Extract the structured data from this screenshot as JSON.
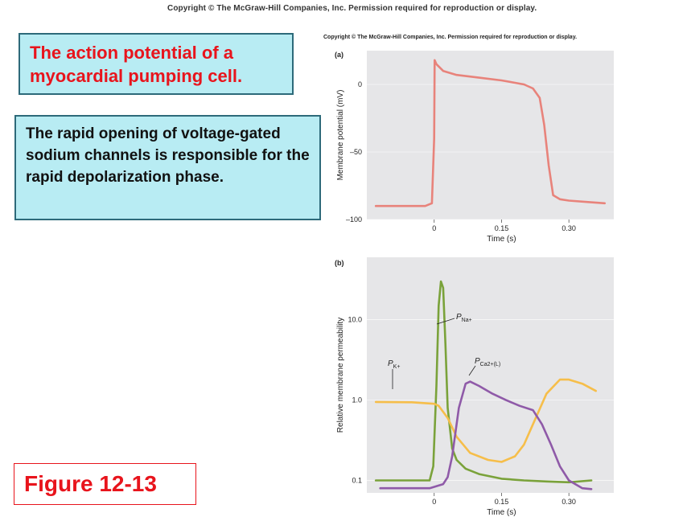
{
  "header": {
    "copyright_top": "Copyright © The McGraw-Hill Companies, Inc. Permission required for reproduction or display."
  },
  "title_box": {
    "text": "The action potential of a myocardial pumping cell."
  },
  "description_box": {
    "text": "The rapid opening of voltage-gated sodium channels is responsible for the rapid depolarization phase."
  },
  "figure_label": {
    "text": "Figure 12-13"
  },
  "figure_copyright": "Copyright © The McGraw-Hill Companies, Inc. Permission required for reproduction or display.",
  "colors": {
    "panel_bg": "#e6e6e8",
    "vm": "#e8837b",
    "pna": "#7aa23a",
    "pk": "#f6be4a",
    "pca": "#8f5aa8",
    "box_bg": "#b8ecf3",
    "red": "#e8141c"
  },
  "chart_data": [
    {
      "panel": "(a)",
      "type": "line",
      "xlabel": "Time (s)",
      "ylabel": "Membrane potential (mV)",
      "x_ticks": [
        {
          "v": 0,
          "label": "0"
        },
        {
          "v": 0.15,
          "label": "0.15"
        },
        {
          "v": 0.3,
          "label": "0.30"
        }
      ],
      "y_ticks": [
        {
          "v": 0,
          "label": "0"
        },
        {
          "v": -50,
          "label": "–50"
        },
        {
          "v": -100,
          "label": "–100"
        }
      ],
      "xlim": [
        -0.15,
        0.4
      ],
      "ylim": [
        -100,
        25
      ],
      "series": [
        {
          "color": "#e8837b",
          "x": [
            -0.13,
            -0.02,
            -0.005,
            0.0,
            0.001,
            0.005,
            0.02,
            0.05,
            0.1,
            0.15,
            0.2,
            0.22,
            0.235,
            0.245,
            0.255,
            0.265,
            0.28,
            0.3,
            0.34,
            0.38
          ],
          "y": [
            -90,
            -90,
            -88,
            -40,
            18,
            15,
            10,
            7,
            5,
            3,
            0,
            -3,
            -10,
            -30,
            -60,
            -82,
            -85,
            -86,
            -87,
            -88
          ]
        }
      ]
    },
    {
      "panel": "(b)",
      "type": "line",
      "log_y": true,
      "xlabel": "Time (s)",
      "ylabel": "Relative membrane permeability",
      "x_ticks": [
        {
          "v": 0,
          "label": "0"
        },
        {
          "v": 0.15,
          "label": "0.15"
        },
        {
          "v": 0.3,
          "label": "0.30"
        }
      ],
      "y_ticks": [
        {
          "v": 10,
          "label": "10.0"
        },
        {
          "v": 1,
          "label": "1.0"
        },
        {
          "v": 0.1,
          "label": "0.1"
        }
      ],
      "xlim": [
        -0.15,
        0.4
      ],
      "ylim": [
        0.07,
        60
      ],
      "series": [
        {
          "name": "P_Na+",
          "color": "#7aa23a",
          "x": [
            -0.13,
            -0.01,
            -0.002,
            0.005,
            0.01,
            0.015,
            0.02,
            0.025,
            0.03,
            0.04,
            0.05,
            0.07,
            0.1,
            0.15,
            0.2,
            0.25,
            0.3,
            0.35
          ],
          "y": [
            0.1,
            0.1,
            0.15,
            1.5,
            15,
            30,
            25,
            5,
            0.8,
            0.25,
            0.18,
            0.14,
            0.12,
            0.105,
            0.1,
            0.097,
            0.095,
            0.1
          ]
        },
        {
          "name": "P_K+",
          "color": "#f6be4a",
          "x": [
            -0.13,
            -0.05,
            0.0,
            0.01,
            0.03,
            0.05,
            0.08,
            0.12,
            0.15,
            0.18,
            0.2,
            0.22,
            0.25,
            0.28,
            0.3,
            0.33,
            0.36
          ],
          "y": [
            0.95,
            0.94,
            0.9,
            0.85,
            0.6,
            0.35,
            0.22,
            0.18,
            0.17,
            0.2,
            0.28,
            0.5,
            1.2,
            1.8,
            1.8,
            1.6,
            1.3
          ]
        },
        {
          "name": "P_Ca2+(L)",
          "color": "#8f5aa8",
          "x": [
            -0.12,
            -0.01,
            0.02,
            0.03,
            0.04,
            0.055,
            0.07,
            0.08,
            0.1,
            0.13,
            0.16,
            0.19,
            0.22,
            0.24,
            0.26,
            0.28,
            0.3,
            0.33,
            0.35
          ],
          "y": [
            0.08,
            0.08,
            0.09,
            0.11,
            0.2,
            0.8,
            1.6,
            1.7,
            1.5,
            1.2,
            1.0,
            0.85,
            0.75,
            0.5,
            0.28,
            0.15,
            0.1,
            0.08,
            0.078
          ]
        }
      ]
    }
  ],
  "annotations": {
    "pna": {
      "base": "P",
      "sub": "Na+"
    },
    "pk": {
      "base": "P",
      "sub": "K+"
    },
    "pca": {
      "base": "P",
      "sub": "Ca2+(L)"
    }
  }
}
